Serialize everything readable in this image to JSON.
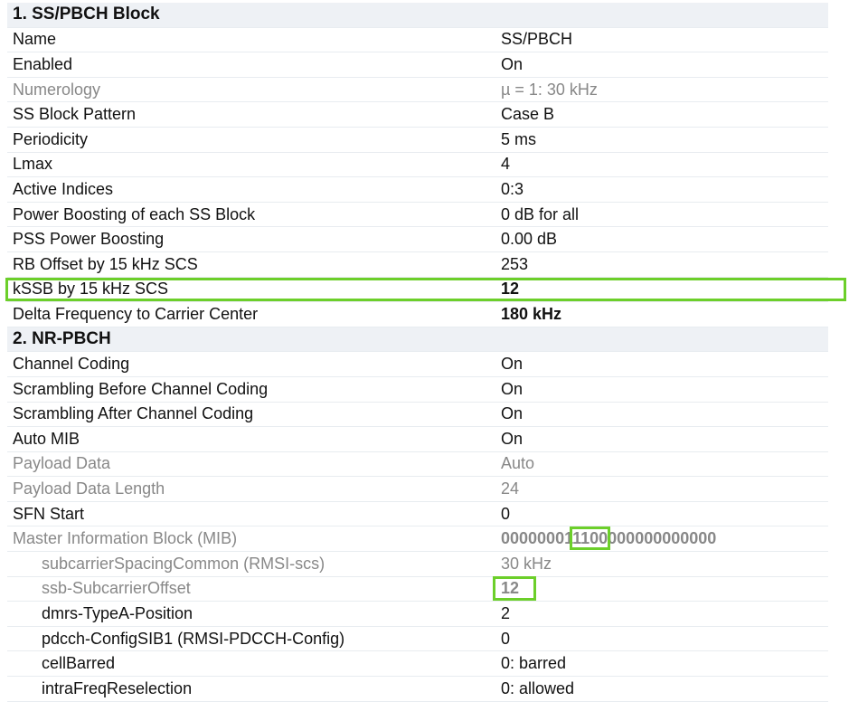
{
  "accent_color": "#6ccf2a",
  "sections": [
    {
      "title": "1. SS/PBCH Block",
      "rows": [
        {
          "key": "Name",
          "value": "SS/PBCH"
        },
        {
          "key": "Enabled",
          "value": "On"
        },
        {
          "key": "Numerology",
          "value": "µ = 1: 30 kHz",
          "dim": true
        },
        {
          "key": "SS Block Pattern",
          "value": "Case B"
        },
        {
          "key": "Periodicity",
          "value": "5 ms"
        },
        {
          "key": "Lmax",
          "value": "4"
        },
        {
          "key": "Active Indices",
          "value": "0:3"
        },
        {
          "key": "Power Boosting of each SS Block",
          "value": "0 dB for all"
        },
        {
          "key": "PSS Power Boosting",
          "value": "0.00 dB"
        },
        {
          "key": "RB Offset by 15 kHz SCS",
          "value": "253"
        },
        {
          "key": "kSSB by 15 kHz SCS",
          "value": "12",
          "bold": true,
          "highlight": true
        },
        {
          "key": "Delta Frequency to Carrier Center",
          "value": "180 kHz",
          "bold": true
        }
      ]
    },
    {
      "title": "2. NR-PBCH",
      "rows": [
        {
          "key": "Channel Coding",
          "value": "On"
        },
        {
          "key": "Scrambling Before Channel Coding",
          "value": "On"
        },
        {
          "key": "Scrambling After Channel Coding",
          "value": "On"
        },
        {
          "key": "Auto MIB",
          "value": "On"
        },
        {
          "key": "Payload Data",
          "value": "Auto",
          "dim": true
        },
        {
          "key": "Payload Data Length",
          "value": "24",
          "dim": true
        },
        {
          "key": "SFN Start",
          "value": "0"
        },
        {
          "key": "Master Information Block (MIB)",
          "value": "",
          "dim": true,
          "bold": true,
          "mib": [
            "00000001",
            "1100",
            "000000000000"
          ]
        },
        {
          "key": "subcarrierSpacingCommon (RMSI-scs)",
          "value": "30 kHz",
          "dim": true,
          "indent": true
        },
        {
          "key": "ssb-SubcarrierOffset",
          "value": "12",
          "dim": true,
          "indent": true,
          "bold": true,
          "mark": true
        },
        {
          "key": "dmrs-TypeA-Position",
          "value": "2",
          "indent": true
        },
        {
          "key": "pdcch-ConfigSIB1 (RMSI-PDCCH-Config)",
          "value": "0",
          "indent": true
        },
        {
          "key": "cellBarred",
          "value": "0: barred",
          "indent": true
        },
        {
          "key": "intraFreqReselection",
          "value": "0: allowed",
          "indent": true
        }
      ]
    }
  ]
}
